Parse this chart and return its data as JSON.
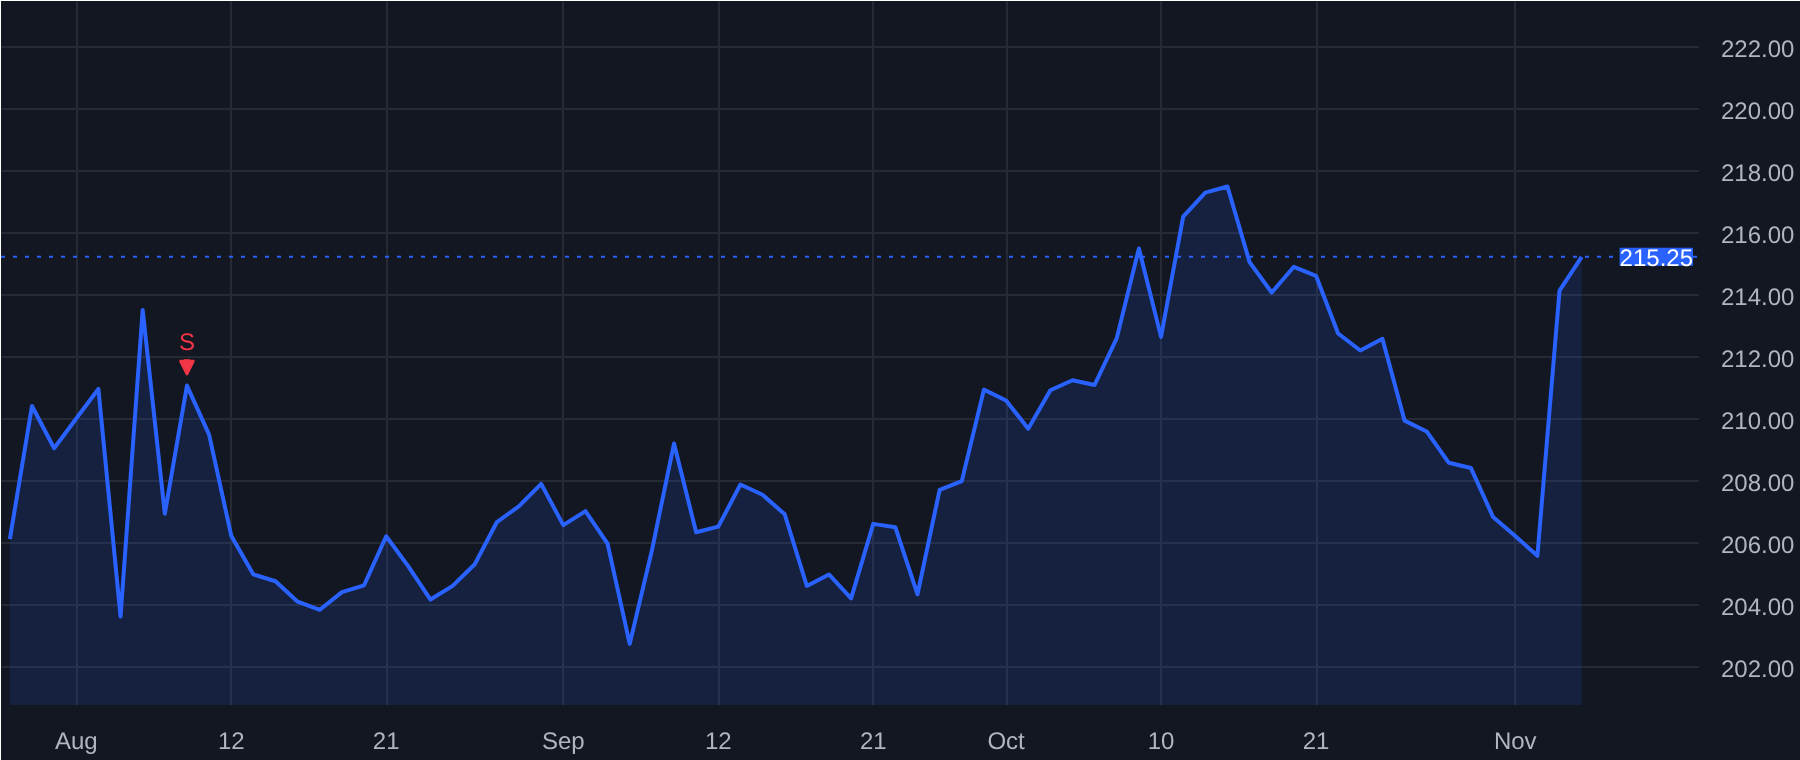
{
  "chart_data": {
    "type": "area",
    "categories": [
      null,
      null,
      null,
      "Aug",
      null,
      null,
      null,
      null,
      null,
      null,
      "12",
      null,
      null,
      null,
      null,
      null,
      null,
      "21",
      null,
      null,
      null,
      null,
      null,
      null,
      null,
      "Sep",
      null,
      null,
      null,
      null,
      null,
      null,
      "12",
      null,
      null,
      null,
      null,
      null,
      null,
      "21",
      null,
      null,
      null,
      null,
      null,
      "Oct",
      null,
      null,
      null,
      null,
      null,
      null,
      "10",
      null,
      null,
      null,
      null,
      null,
      null,
      "21",
      null,
      null,
      null,
      null,
      null,
      null,
      null,
      null,
      "Nov",
      null,
      null,
      null
    ],
    "series": [
      {
        "color": "#2962ff",
        "values": [
          206.15,
          210.44,
          209.08,
          210.04,
          210.99,
          203.65,
          213.54,
          206.97,
          211.1,
          209.52,
          206.26,
          205.01,
          204.79,
          204.13,
          203.87,
          204.44,
          204.66,
          206.24,
          205.27,
          204.2,
          204.64,
          205.34,
          206.7,
          207.21,
          207.93,
          206.6,
          207.05,
          206.0,
          202.77,
          205.78,
          209.23,
          206.37,
          206.55,
          207.91,
          207.58,
          206.95,
          204.64,
          205.01,
          204.24,
          206.64,
          206.53,
          204.37,
          207.74,
          208.02,
          210.97,
          210.62,
          209.71,
          210.95,
          211.27,
          211.12,
          212.63,
          215.52,
          212.67,
          216.55,
          217.32,
          217.52,
          215.08,
          214.1,
          214.93,
          214.64,
          212.78,
          212.23,
          212.61,
          209.97,
          209.62,
          208.61,
          208.44,
          206.86,
          206.25,
          205.61,
          214.16,
          215.25
        ]
      }
    ],
    "ylim": [
      200.8,
      223.5
    ],
    "yticks": [
      {
        "value": 202,
        "label": "202.00"
      },
      {
        "value": 204,
        "label": "204.00"
      },
      {
        "value": 206,
        "label": "206.00"
      },
      {
        "value": 208,
        "label": "208.00"
      },
      {
        "value": 210,
        "label": "210.00"
      },
      {
        "value": 212,
        "label": "212.00"
      },
      {
        "value": 214,
        "label": "214.00"
      },
      {
        "value": 216,
        "label": "216.00"
      },
      {
        "value": 218,
        "label": "218.00"
      },
      {
        "value": 220,
        "label": "220.00"
      },
      {
        "value": 222,
        "label": "222.00"
      }
    ],
    "grid": true,
    "ref_lines": [
      {
        "axis": "y",
        "value": 215.25,
        "label": "215.25",
        "color": "#2962ff",
        "line_style": "dotted"
      }
    ],
    "annotations": [
      {
        "text": "S",
        "y": 211.1
      }
    ]
  }
}
